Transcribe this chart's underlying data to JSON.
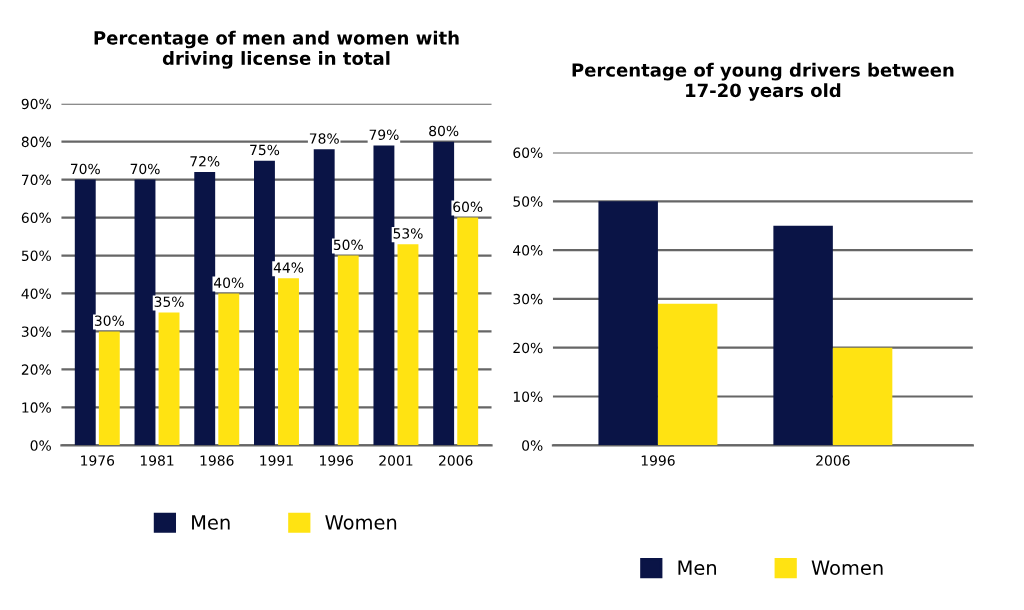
{
  "chart_data": [
    {
      "type": "bar",
      "title": "Percentage of men and women with\ndriving license in total",
      "categories": [
        "1976",
        "1981",
        "1986",
        "1991",
        "1996",
        "2001",
        "2006"
      ],
      "series": [
        {
          "name": "Men",
          "color": "#0a1446",
          "values": [
            70,
            70,
            72,
            75,
            78,
            79,
            80
          ],
          "value_labels": [
            "70%",
            "70%",
            "72%",
            "75%",
            "78%",
            "79%",
            "80%"
          ]
        },
        {
          "name": "Women",
          "color": "#ffe312",
          "values": [
            30,
            35,
            40,
            44,
            50,
            53,
            60
          ],
          "value_labels": [
            "30%",
            "35%",
            "40%",
            "44%",
            "50%",
            "53%",
            "60%"
          ]
        }
      ],
      "ylim": [
        0,
        90
      ],
      "yticks": [
        {
          "value": 0,
          "label": "0%"
        },
        {
          "value": 10,
          "label": "10%"
        },
        {
          "value": 20,
          "label": "20%"
        },
        {
          "value": 30,
          "label": "30%"
        },
        {
          "value": 40,
          "label": "40%"
        },
        {
          "value": 50,
          "label": "50%"
        },
        {
          "value": 60,
          "label": "60%"
        },
        {
          "value": 70,
          "label": "70%"
        },
        {
          "value": 80,
          "label": "80%"
        },
        {
          "value": 90,
          "label": "90%"
        }
      ],
      "grid": "y",
      "legend": "bottom"
    },
    {
      "type": "bar",
      "title": "Percentage of young drivers between\n17-20 years old",
      "categories": [
        "1996",
        "2006"
      ],
      "series": [
        {
          "name": "Men",
          "color": "#0a1446",
          "values": [
            50,
            45
          ]
        },
        {
          "name": "Women",
          "color": "#ffe312",
          "values": [
            29,
            20
          ]
        }
      ],
      "ylim": [
        0,
        60
      ],
      "yticks": [
        {
          "value": 0,
          "label": "0%"
        },
        {
          "value": 10,
          "label": "10%"
        },
        {
          "value": 20,
          "label": "20%"
        },
        {
          "value": 30,
          "label": "30%"
        },
        {
          "value": 40,
          "label": "40%"
        },
        {
          "value": 50,
          "label": "50%"
        },
        {
          "value": 60,
          "label": "60%"
        }
      ],
      "grid": "y",
      "legend": "bottom"
    }
  ]
}
